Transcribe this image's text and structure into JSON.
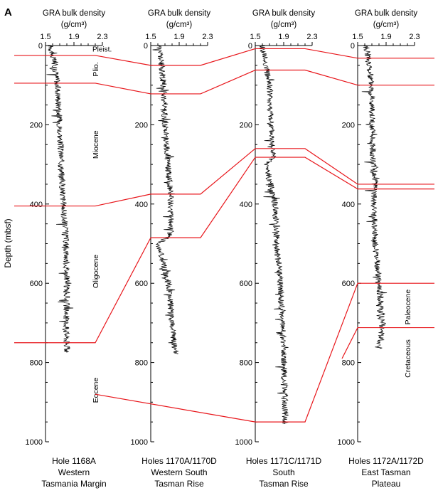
{
  "figure_label": "A",
  "y_axis_title": "Depth (mbsf)",
  "x_axis_title_line1": "GRA bulk density",
  "x_axis_title_line2": "(g/cm³)",
  "colors": {
    "trace": "#000000",
    "correlation": "#e8161b",
    "axis": "#000000"
  },
  "chart_data": [
    {
      "type": "line",
      "hole": "Hole 1168A",
      "caption": [
        "Hole 1168A",
        "Western",
        "Tasmania Margin"
      ],
      "xlabel": "GRA bulk density (g/cm³)",
      "ylabel": "Depth (mbsf)",
      "xlim": [
        1.5,
        2.3
      ],
      "xticks": [
        "1.5",
        "1.9",
        "2.3"
      ],
      "ylim": [
        0,
        1000
      ],
      "yticks": [
        "0",
        "200",
        "400",
        "600",
        "800",
        "1000"
      ],
      "y_reversed": true,
      "data_depth_range": [
        0,
        775
      ],
      "density_profile": [
        [
          0,
          1.57
        ],
        [
          50,
          1.63
        ],
        [
          100,
          1.67
        ],
        [
          200,
          1.7
        ],
        [
          300,
          1.72
        ],
        [
          400,
          1.75
        ],
        [
          500,
          1.79
        ],
        [
          600,
          1.8
        ],
        [
          700,
          1.79
        ],
        [
          775,
          1.8
        ]
      ],
      "boundary_depths": [
        25,
        95,
        405,
        750
      ],
      "stages": [
        {
          "label": "Pleist.",
          "depth": 8
        },
        {
          "label": "Plio.",
          "depth": 60
        },
        {
          "label": "Miocene",
          "depth": 250
        },
        {
          "label": "Oligocene",
          "depth": 570
        },
        {
          "label": "Eocene",
          "depth": 870
        }
      ]
    },
    {
      "type": "line",
      "hole": "Holes 1170A/1170D",
      "caption": [
        "Holes 1170A/1170D",
        "Western South",
        "Tasman Rise"
      ],
      "xlabel": "GRA bulk density (g/cm³)",
      "ylabel": "",
      "xlim": [
        1.5,
        2.3
      ],
      "xticks": [
        "1.5",
        "1.9",
        "2.3"
      ],
      "ylim": [
        0,
        1000
      ],
      "yticks": [
        "0",
        "200",
        "400",
        "600",
        "800",
        "1000"
      ],
      "y_reversed": true,
      "data_depth_range": [
        0,
        780
      ],
      "density_profile": [
        [
          0,
          1.62
        ],
        [
          100,
          1.68
        ],
        [
          200,
          1.7
        ],
        [
          300,
          1.74
        ],
        [
          380,
          1.78
        ],
        [
          480,
          1.78
        ],
        [
          500,
          1.6
        ],
        [
          600,
          1.75
        ],
        [
          700,
          1.8
        ],
        [
          780,
          1.85
        ]
      ],
      "boundary_depths": [
        50,
        122,
        375,
        485
      ],
      "stages": []
    },
    {
      "type": "line",
      "hole": "Holes 1171C/1171D",
      "caption": [
        "Holes 1171C/1171D",
        "South",
        "Tasman Rise"
      ],
      "xlabel": "GRA bulk density (g/cm³)",
      "ylabel": "",
      "xlim": [
        1.5,
        2.3
      ],
      "xticks": [
        "1.5",
        "1.9",
        "2.3"
      ],
      "ylim": [
        0,
        1000
      ],
      "yticks": [
        "0",
        "200",
        "400",
        "600",
        "800",
        "1000"
      ],
      "y_reversed": true,
      "data_depth_range": [
        0,
        955
      ],
      "density_profile": [
        [
          0,
          1.6
        ],
        [
          100,
          1.7
        ],
        [
          200,
          1.72
        ],
        [
          280,
          1.75
        ],
        [
          300,
          1.65
        ],
        [
          400,
          1.78
        ],
        [
          500,
          1.8
        ],
        [
          600,
          1.85
        ],
        [
          700,
          1.88
        ],
        [
          800,
          1.9
        ],
        [
          900,
          1.92
        ],
        [
          955,
          1.92
        ]
      ],
      "boundary_depths": [
        8,
        62,
        260,
        282,
        950
      ],
      "stages": []
    },
    {
      "type": "line",
      "hole": "Holes 1172A/1172D",
      "caption": [
        "Holes 1172A/1172D",
        "East Tasman",
        "Plateau"
      ],
      "xlabel": "GRA bulk density (g/cm³)",
      "ylabel": "",
      "xlim": [
        1.5,
        2.3
      ],
      "xticks": [
        "1.5",
        "1.9",
        "2.3"
      ],
      "ylim": [
        0,
        1000
      ],
      "yticks": [
        "0",
        "200",
        "400",
        "600",
        "800",
        "1000"
      ],
      "y_reversed": true,
      "data_depth_range": [
        0,
        765
      ],
      "density_profile": [
        [
          0,
          1.62
        ],
        [
          100,
          1.7
        ],
        [
          200,
          1.7
        ],
        [
          300,
          1.72
        ],
        [
          350,
          1.75
        ],
        [
          400,
          1.72
        ],
        [
          500,
          1.75
        ],
        [
          600,
          1.8
        ],
        [
          700,
          1.85
        ],
        [
          765,
          1.8
        ]
      ],
      "boundary_depths": [
        32,
        100,
        350,
        362,
        600,
        712
      ],
      "stages": [
        {
          "label": "Paleocene",
          "depth": 660
        },
        {
          "label": "Cretaceous",
          "depth": 790
        }
      ]
    }
  ]
}
